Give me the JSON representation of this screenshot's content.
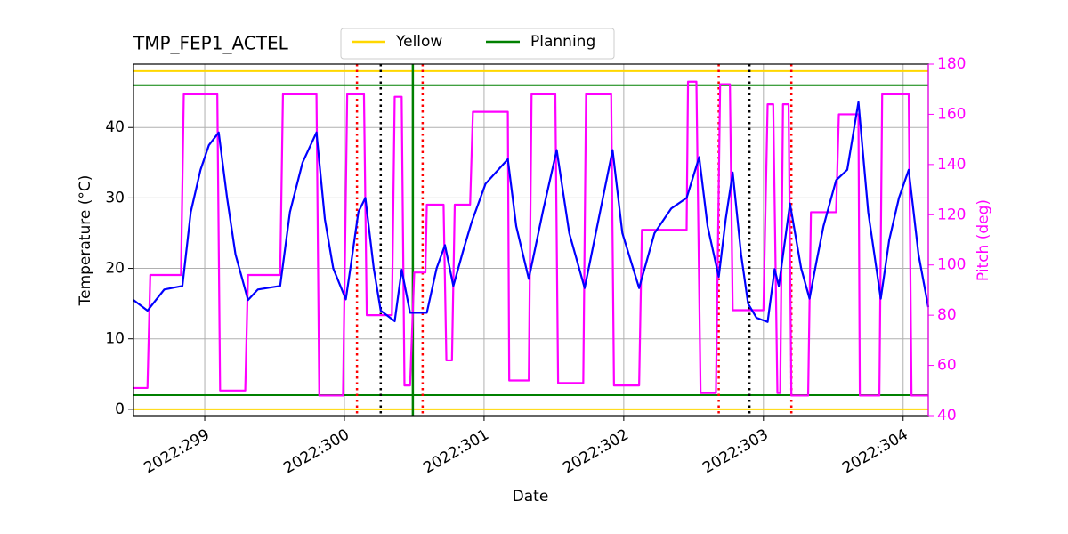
{
  "chart_data": {
    "type": "line",
    "title": "TMP_FEP1_ACTEL",
    "x_label": "Date",
    "y_label": "Temperature (°C)",
    "y2_label": "Pitch (deg)",
    "xlim": [
      298.49,
      304.18
    ],
    "xticks": [
      {
        "value": 299,
        "label": "2022:299"
      },
      {
        "value": 300,
        "label": "2022:300"
      },
      {
        "value": 301,
        "label": "2022:301"
      },
      {
        "value": 302,
        "label": "2022:302"
      },
      {
        "value": 303,
        "label": "2022:303"
      },
      {
        "value": 304,
        "label": "2022:304"
      }
    ],
    "ylim": [
      -0.9,
      49
    ],
    "yticks": [
      0,
      10,
      20,
      30,
      40
    ],
    "y2lim": [
      40,
      180
    ],
    "y2ticks": [
      40,
      60,
      80,
      100,
      120,
      140,
      160,
      180
    ],
    "grid": true,
    "limit_lines": [
      {
        "name": "Yellow",
        "color": "#ffd700",
        "values": [
          48,
          0
        ]
      },
      {
        "name": "Planning",
        "color": "#008000",
        "values": [
          46,
          2
        ]
      }
    ],
    "vlines": [
      {
        "x": 300.09,
        "color": "#ff0000",
        "style": "dotted"
      },
      {
        "x": 300.56,
        "color": "#ff0000",
        "style": "dotted"
      },
      {
        "x": 302.68,
        "color": "#ff0000",
        "style": "dotted"
      },
      {
        "x": 303.2,
        "color": "#ff0000",
        "style": "dotted"
      },
      {
        "x": 300.26,
        "color": "#000000",
        "style": "dotted"
      },
      {
        "x": 302.9,
        "color": "#000000",
        "style": "dotted"
      },
      {
        "x": 300.49,
        "color": "#008000",
        "style": "solid"
      }
    ],
    "series": [
      {
        "color": "#0000ff",
        "axis": "y",
        "x": [
          298.49,
          298.59,
          298.65,
          298.71,
          298.84,
          298.9,
          298.97,
          299.03,
          299.1,
          299.16,
          299.22,
          299.31,
          299.38,
          299.54,
          299.61,
          299.7,
          299.8,
          299.86,
          299.92,
          300.01,
          300.05,
          300.1,
          300.15,
          300.21,
          300.26,
          300.36,
          300.41,
          300.47,
          300.59,
          300.66,
          300.72,
          300.78,
          300.85,
          300.91,
          301.01,
          301.17,
          301.23,
          301.32,
          301.42,
          301.52,
          301.61,
          301.72,
          301.82,
          301.92,
          301.99,
          302.11,
          302.22,
          302.34,
          302.45,
          302.54,
          302.6,
          302.68,
          302.73,
          302.78,
          302.84,
          302.89,
          302.95,
          303.03,
          303.08,
          303.11,
          303.19,
          303.27,
          303.33,
          303.38,
          303.43,
          303.52,
          303.6,
          303.68,
          303.75,
          303.84,
          303.9,
          303.97,
          304.04,
          304.11,
          304.18
        ],
        "values": [
          15.5,
          14,
          15.5,
          17,
          17.5,
          28,
          34,
          37.5,
          39.3,
          30,
          22,
          15.5,
          17,
          17.5,
          28,
          35,
          39.3,
          27,
          20,
          15.6,
          21,
          28,
          30,
          20,
          14,
          12.5,
          19.8,
          13.7,
          13.7,
          20,
          23.3,
          17.5,
          22.5,
          26.5,
          32,
          35.5,
          26,
          18.5,
          28,
          36.8,
          25,
          17.2,
          27,
          36.8,
          25,
          17.2,
          25,
          28.5,
          30,
          35.8,
          26,
          18.8,
          27,
          33.6,
          22,
          15,
          13,
          12.4,
          19.9,
          17.5,
          29.2,
          20,
          15.7,
          21,
          26,
          32.5,
          34,
          43.6,
          28,
          15.7,
          24,
          30,
          34,
          22,
          14.5
        ]
      },
      {
        "color": "#ff00ff",
        "axis": "y2",
        "x": [
          298.49,
          298.59,
          298.61,
          298.83,
          298.85,
          299.09,
          299.11,
          299.29,
          299.31,
          299.54,
          299.56,
          299.8,
          299.82,
          299.99,
          300.02,
          300.14,
          300.16,
          300.34,
          300.36,
          300.41,
          300.43,
          300.47,
          300.5,
          300.58,
          300.59,
          300.71,
          300.73,
          300.77,
          300.79,
          300.9,
          300.92,
          301.17,
          301.18,
          301.32,
          301.34,
          301.51,
          301.53,
          301.71,
          301.73,
          301.91,
          301.93,
          302.11,
          302.13,
          302.45,
          302.46,
          302.52,
          302.55,
          302.66,
          302.69,
          302.76,
          302.78,
          303.0,
          303.03,
          303.07,
          303.1,
          303.12,
          303.14,
          303.18,
          303.2,
          303.32,
          303.34,
          303.52,
          303.54,
          303.68,
          303.69,
          303.83,
          303.85,
          304.04,
          304.06,
          304.18
        ],
        "values": [
          51,
          51,
          96,
          96,
          168,
          168,
          50,
          50,
          96,
          96,
          168,
          168,
          48,
          48,
          168,
          168,
          80,
          80,
          167,
          167,
          52,
          52,
          97,
          97,
          124,
          124,
          62,
          62,
          124,
          124,
          161,
          161,
          54,
          54,
          168,
          168,
          53,
          53,
          168,
          168,
          52,
          52,
          114,
          114,
          173,
          173,
          49,
          49,
          172,
          172,
          82,
          82,
          164,
          164,
          49,
          49,
          164,
          164,
          48,
          48,
          121,
          121,
          160,
          160,
          48,
          48,
          168,
          168,
          48,
          48
        ]
      }
    ]
  }
}
